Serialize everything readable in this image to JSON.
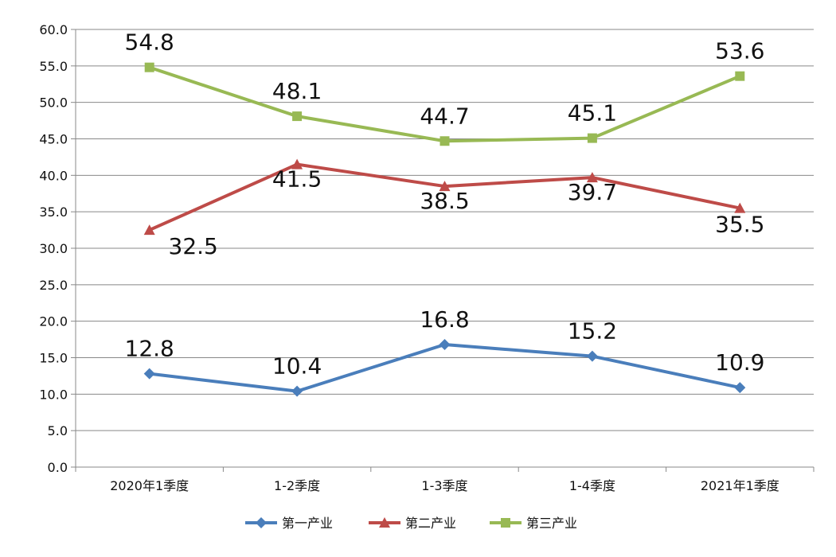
{
  "chart_data": {
    "type": "line",
    "categories": [
      "2020年1季度",
      "1-2季度",
      "1-3季度",
      "1-4季度",
      "2021年1季度"
    ],
    "series": [
      {
        "name": "第一产业",
        "values": [
          12.8,
          10.4,
          16.8,
          15.2,
          10.9
        ],
        "color": "#4a7ebb",
        "marker": "diamond"
      },
      {
        "name": "第二产业",
        "values": [
          32.5,
          41.5,
          38.5,
          39.7,
          35.5
        ],
        "color": "#be4b48",
        "marker": "triangle"
      },
      {
        "name": "第三产业",
        "values": [
          54.8,
          48.1,
          44.7,
          45.1,
          53.6
        ],
        "color": "#98b954",
        "marker": "square"
      }
    ],
    "ylim": [
      0,
      60
    ],
    "yticks": [
      "0.0",
      "5.0",
      "10.0",
      "15.0",
      "20.0",
      "25.0",
      "30.0",
      "35.0",
      "40.0",
      "45.0",
      "50.0",
      "55.0",
      "60.0"
    ],
    "grid": true,
    "legend": "bottom",
    "data_labels": true
  }
}
